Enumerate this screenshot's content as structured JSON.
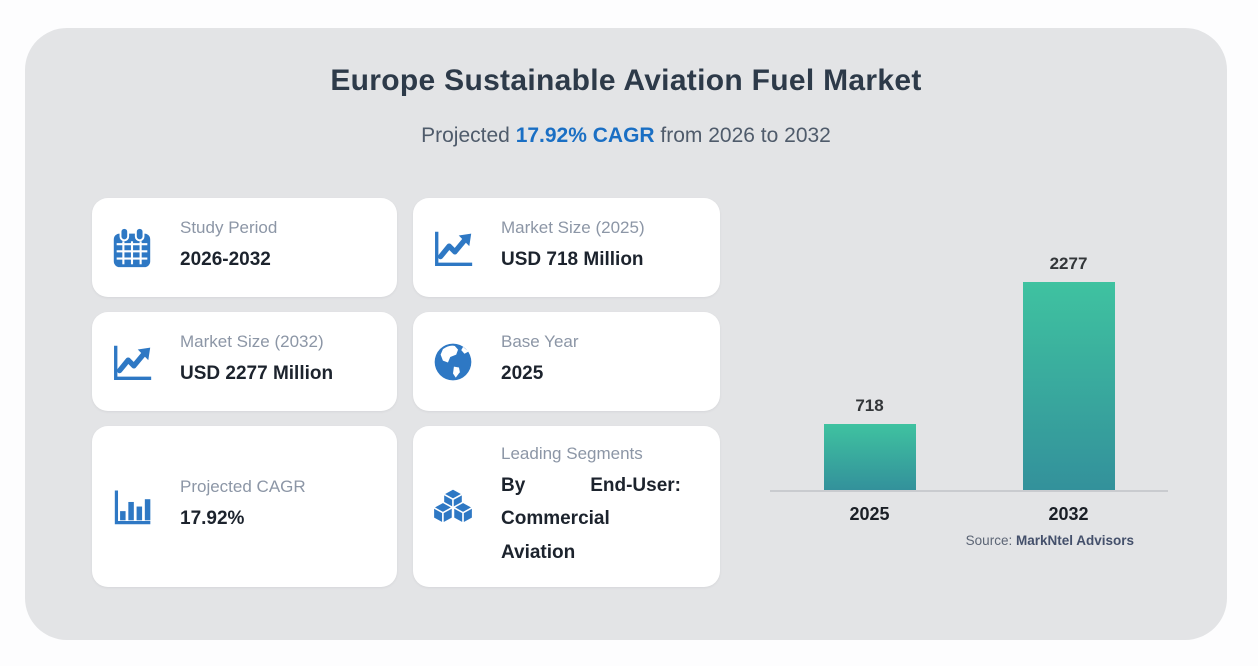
{
  "panel": {
    "title": "Europe Sustainable Aviation Fuel Market",
    "subtitle": {
      "prefix": "Projected ",
      "accent": "17.92% CAGR",
      "suffix": " from 2026 to 2032"
    }
  },
  "cards": [
    {
      "icon": "calendar-icon",
      "label": "Study Period",
      "value": "2026-2032"
    },
    {
      "icon": "trend-chart-icon",
      "label": "Market Size (2025)",
      "value": "USD 718 Million"
    },
    {
      "icon": "trend-chart-icon",
      "label": "Market Size (2032)",
      "value": "USD 2277 Million"
    },
    {
      "icon": "globe-icon",
      "label": "Base Year",
      "value": "2025"
    },
    {
      "icon": "bar-chart-icon",
      "label": "Projected CAGR",
      "value": "17.92%"
    },
    {
      "icon": "cubes-icon",
      "label": "Leading Segments",
      "value": "By End-User: Commercial Aviation"
    }
  ],
  "chart_data": {
    "type": "bar",
    "categories": [
      "2025",
      "2032"
    ],
    "values": [
      718,
      2277
    ],
    "title": "",
    "xlabel": "",
    "ylabel": "",
    "ylim": [
      0,
      2277
    ],
    "grid": false,
    "legend": false,
    "bar_color_top": "#3fc2a0",
    "bar_color_bottom": "#33919b",
    "source_prefix": "Source: ",
    "source_name": "MarkNtel Advisors"
  },
  "colors": {
    "accent_blue": "#1a6fc4",
    "icon_blue": "#2e78c4",
    "panel_bg": "#e3e4e6",
    "card_bg": "#ffffff",
    "axis_line": "#c9cbcf"
  }
}
